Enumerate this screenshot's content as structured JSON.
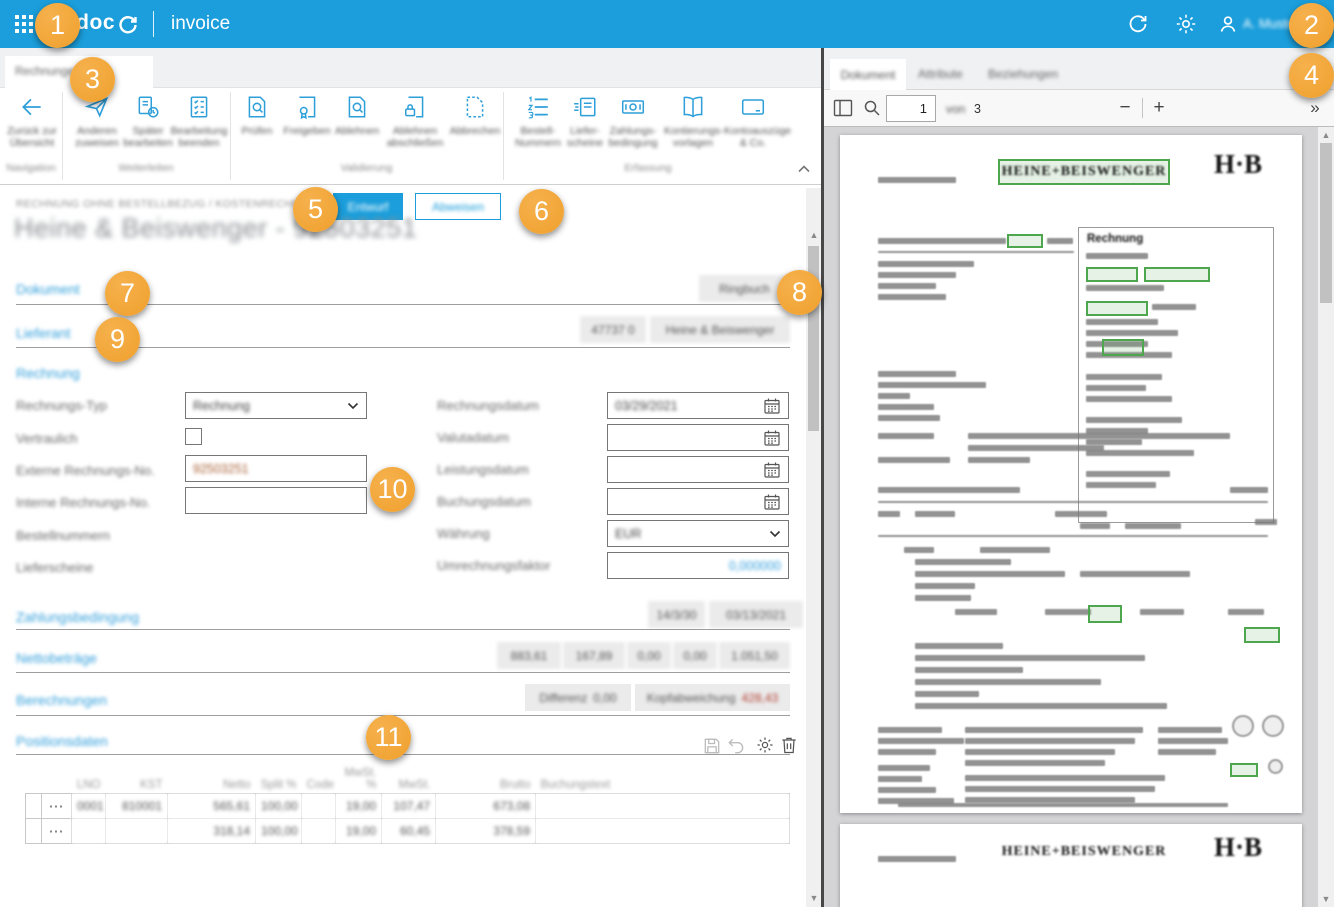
{
  "colors": {
    "accent": "#1b9edb",
    "badge_orange": "#efa02c",
    "highlight_green": "#4ea64e",
    "error_red": "#b03a2e"
  },
  "topbar": {
    "brand": "edoc",
    "app_name": "invoice",
    "username": "A. Muster"
  },
  "badges": [
    "1",
    "2",
    "3",
    "4",
    "5",
    "6",
    "7",
    "8",
    "9",
    "10",
    "11"
  ],
  "left_tab": "Rechnungen",
  "ribbon": {
    "groups": [
      {
        "label": "Navigation",
        "items": [
          {
            "icon": "back-icon",
            "label": "Zurück zur Übersicht"
          }
        ]
      },
      {
        "label": "Weiterleiten",
        "items": [
          {
            "icon": "send-icon",
            "label": "Anderen zuweisen"
          },
          {
            "icon": "document-clock-icon",
            "label": "Später bearbeiten"
          },
          {
            "icon": "checklist-icon",
            "label": "Bearbeitung beenden"
          }
        ]
      },
      {
        "label": "Validierung",
        "items": [
          {
            "icon": "document-search-icon",
            "label": "Prüfen"
          },
          {
            "icon": "document-certificate-icon",
            "label": "Freigeben"
          },
          {
            "icon": "document-search-icon",
            "label": "Ablehnen"
          },
          {
            "icon": "document-lock-icon",
            "label": "Ablehnen abschließen"
          },
          {
            "icon": "document-dashed-icon",
            "label": "Abbrechen"
          }
        ]
      },
      {
        "label": "Erfassung",
        "items": [
          {
            "icon": "numbered-list-icon",
            "label": "Bestell- Nummern"
          },
          {
            "icon": "delivery-note-icon",
            "label": "Liefer- scheine"
          },
          {
            "icon": "banknote-icon",
            "label": "Zahlungs- bedingung"
          },
          {
            "icon": "book-icon",
            "label": "Kontierungs- vorlagen"
          },
          {
            "icon": "credit-card-icon",
            "label": "Kontoauszüge & Co."
          }
        ]
      }
    ]
  },
  "main": {
    "breadcrumb": "RECHNUNG OHNE BESTELLBEZUG / KOSTENRECHNUNG",
    "draft_button": "Entwurf",
    "reject_button": "Abweisen",
    "title": "Heine & Beiswenger - 92503251",
    "sections": {
      "dokument": {
        "label": "Dokument",
        "chip": "Ringbuch"
      },
      "lieferant": {
        "label": "Lieferant",
        "chip_number": "47737 0",
        "chip_name": "Heine & Beiswenger"
      },
      "rechnung": {
        "label": "Rechnung"
      },
      "zahlung": {
        "label": "Zahlungsbedingung",
        "chip_terms": "14/3/30",
        "chip_date": "03/13/2021"
      },
      "netto": {
        "label": "Nettobeträge",
        "chips": [
          "883,61",
          "167,89",
          "0,00",
          "0,00",
          "1.051,50"
        ]
      },
      "berechnungen": {
        "label": "Berechnungen",
        "diff_label": "Differenz",
        "diff_value": "0,00",
        "dev_label": "Kopfabweichung",
        "dev_value": "428,43"
      },
      "positionen": {
        "label": "Positionsdaten"
      }
    },
    "form": {
      "left": [
        {
          "label": "Rechnungs-Typ",
          "value": "Rechnung"
        },
        {
          "label": "Vertraulich",
          "value": ""
        },
        {
          "label": "Externe Rechnungs-No.",
          "value": "92503251"
        },
        {
          "label": "Interne Rechnungs-No.",
          "value": ""
        },
        {
          "label": "Bestellnummern",
          "value": ""
        },
        {
          "label": "Lieferscheine",
          "value": ""
        }
      ],
      "right": [
        {
          "label": "Rechnungsdatum",
          "value": "03/29/2021"
        },
        {
          "label": "Valutadatum",
          "value": ""
        },
        {
          "label": "Leistungsdatum",
          "value": ""
        },
        {
          "label": "Buchungsdatum",
          "value": ""
        },
        {
          "label": "Währung",
          "value": "EUR"
        },
        {
          "label": "Umrechnungsfaktor",
          "value": "0,000000"
        }
      ]
    },
    "table": {
      "headers": [
        "",
        "LNO",
        "KST",
        "Netto",
        "Split %",
        "Code",
        "MwSt. %",
        "MwSt.",
        "Brutto",
        "Buchungstext"
      ],
      "rows": [
        {
          "menu": "⋯",
          "cells": [
            "0001",
            "810001",
            "565,61",
            "100,00",
            "",
            "19,00",
            "107,47",
            "673,08",
            ""
          ]
        },
        {
          "menu": "⋯",
          "cells": [
            "",
            "",
            "318,14",
            "100,00",
            "",
            "19,00",
            "60,45",
            "378,59",
            ""
          ]
        }
      ]
    }
  },
  "viewer": {
    "tabs": [
      "Dokument",
      "Attribute",
      "Beziehungen"
    ],
    "toolbar": {
      "page": "1",
      "of_label": "von",
      "page_count": "3",
      "zoom_out": "−",
      "zoom_in": "+",
      "expand": "»"
    },
    "doc": {
      "company": "HEINE+BEISWENGER",
      "logo": "H·B",
      "invoice_box_title": "Rechnung"
    }
  }
}
